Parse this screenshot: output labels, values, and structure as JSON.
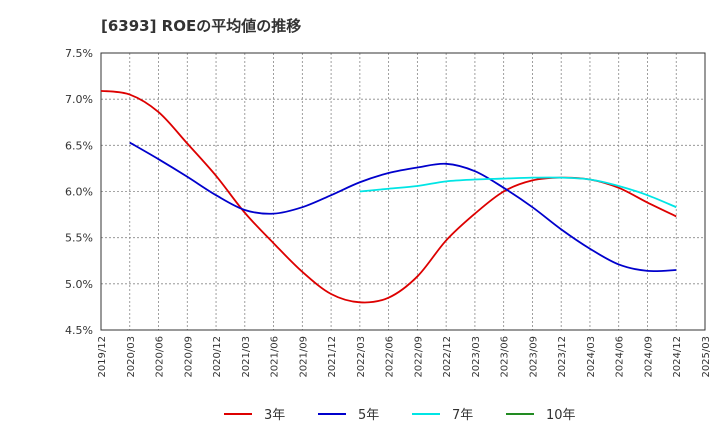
{
  "chart_data": {
    "type": "line",
    "title": "[6393]  ROEの平均値の推移",
    "xlabel": "",
    "ylabel": "",
    "ylim": [
      4.5,
      7.5
    ],
    "yticks": [
      4.5,
      5.0,
      5.5,
      6.0,
      6.5,
      7.0,
      7.5
    ],
    "ytick_labels": [
      "4.5%",
      "5.0%",
      "5.5%",
      "6.0%",
      "6.5%",
      "7.0%",
      "7.5%"
    ],
    "x_labels": [
      "2019/12",
      "2020/03",
      "2020/06",
      "2020/09",
      "2020/12",
      "2021/03",
      "2021/06",
      "2021/09",
      "2021/12",
      "2022/03",
      "2022/06",
      "2022/09",
      "2022/12",
      "2023/03",
      "2023/06",
      "2023/09",
      "2023/12",
      "2024/03",
      "2024/06",
      "2024/09",
      "2024/12",
      "2025/03"
    ],
    "grid": true,
    "legend_position": "bottom",
    "series": [
      {
        "name": "3年",
        "color": "#dd0000",
        "start_index": 0,
        "values": [
          7.09,
          7.05,
          6.86,
          6.52,
          6.17,
          5.77,
          5.44,
          5.13,
          4.89,
          4.8,
          4.85,
          5.08,
          5.47,
          5.76,
          6.0,
          6.12,
          6.15,
          6.13,
          6.04,
          5.88,
          5.73
        ]
      },
      {
        "name": "5年",
        "color": "#0000cc",
        "start_index": 1,
        "values": [
          6.53,
          6.35,
          6.16,
          5.96,
          5.8,
          5.76,
          5.83,
          5.96,
          6.1,
          6.2,
          6.26,
          6.3,
          6.22,
          6.04,
          5.83,
          5.59,
          5.38,
          5.21,
          5.14,
          5.15
        ]
      },
      {
        "name": "7年",
        "color": "#00e5e5",
        "start_index": 9,
        "values": [
          6.0,
          6.03,
          6.06,
          6.11,
          6.13,
          6.14,
          6.15,
          6.15,
          6.13,
          6.06,
          5.96,
          5.83
        ]
      },
      {
        "name": "10年",
        "color": "#228b22",
        "start_index": 0,
        "values": []
      }
    ]
  }
}
